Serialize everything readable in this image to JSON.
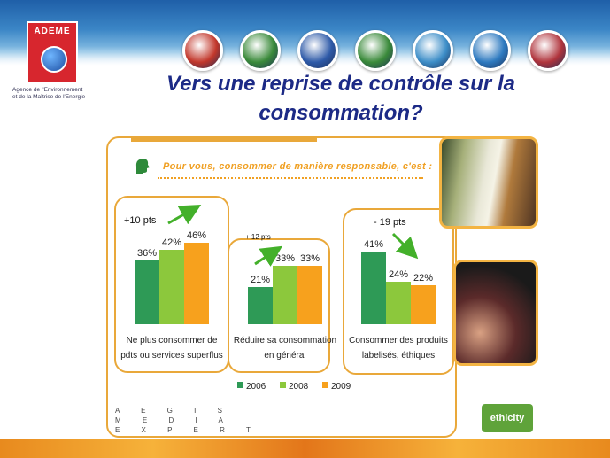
{
  "logo": {
    "name": "ADEME",
    "agency_line1": "Agence de l'Environnement",
    "agency_line2": "et de la Maîtrise de l'Energie"
  },
  "title": {
    "line1": "Vers une reprise de contrôle sur la",
    "line2": "consommation?"
  },
  "theme_icons": [
    {
      "name": "world-icon",
      "color": "#c2372b"
    },
    {
      "name": "france-map-icon",
      "color": "#3a8a3a"
    },
    {
      "name": "sun-icon",
      "color": "#2e5aa8"
    },
    {
      "name": "house-icon",
      "color": "#3a8a3a"
    },
    {
      "name": "chart-icon",
      "color": "#3d8ec8"
    },
    {
      "name": "wave-icon",
      "color": "#2e7ac0"
    },
    {
      "name": "hammer-icon",
      "color": "#b0343c"
    }
  ],
  "slide": {
    "question": "Pour vous, consommer de manière responsable, c'est :",
    "footer_aegis": [
      "A  E  G  I  S",
      "M  E  D  I  A",
      "E  X  P  E  R  T"
    ],
    "brand": "ethicity"
  },
  "colors": {
    "2006": "#2e9a56",
    "2008": "#8cc83c",
    "2009": "#f7a11d",
    "frame": "#e9a83a"
  },
  "chart_data": {
    "type": "bar",
    "categories": [
      "Ne plus consommer de pdts ou services superflus",
      "Réduire sa consommation en général",
      "Consommer des produits labelisés, éthiques"
    ],
    "category_lines": [
      [
        "Ne plus consommer de",
        "pdts ou services superflus"
      ],
      [
        "Réduire sa consommation",
        "en général"
      ],
      [
        "Consommer des produits",
        "labelisés, éthiques"
      ]
    ],
    "series": [
      {
        "name": "2006",
        "values": [
          36,
          21,
          41
        ],
        "labels": [
          "36%",
          "21%",
          "41%"
        ]
      },
      {
        "name": "2008",
        "values": [
          42,
          33,
          24
        ],
        "labels": [
          "42%",
          "33%",
          "24%"
        ]
      },
      {
        "name": "2009",
        "values": [
          46,
          33,
          22
        ],
        "labels": [
          "46%",
          "33%",
          "22%"
        ]
      }
    ],
    "trends": [
      "+10 pts",
      "+ 12 pts",
      "- 19 pts"
    ],
    "legend": [
      "2006",
      "2008",
      "2009"
    ],
    "ylim": [
      0,
      50
    ]
  }
}
